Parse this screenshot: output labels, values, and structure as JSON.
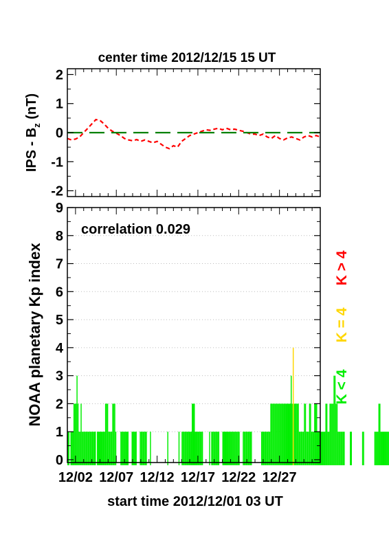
{
  "chart_data": [
    {
      "type": "line",
      "title": "center time 2012/12/15 15 UT",
      "ylabel_main": "IPS - B",
      "ylabel_sub": "z",
      "ylabel_unit": " (nT)",
      "ylim": [
        -2.2,
        2.2
      ],
      "yticks": [
        "2",
        "1",
        "0",
        "-1",
        "-2"
      ],
      "xlim_days": [
        0,
        31
      ],
      "series": [
        {
          "style": "dashed",
          "color": "#ff0000",
          "x": [
            0,
            0.5,
            1,
            1.5,
            2,
            2.5,
            3,
            3.5,
            4,
            4.5,
            5,
            5.5,
            6,
            6.5,
            7,
            7.5,
            8,
            8.5,
            9,
            9.5,
            10,
            10.5,
            11,
            11.5,
            12,
            12.5,
            13,
            13.5,
            14,
            14.5,
            15,
            15.5,
            16,
            16.5,
            17,
            17.5,
            18,
            18.5,
            19,
            19.5,
            20,
            20.5,
            21,
            21.5,
            22,
            22.5,
            23,
            23.5,
            24,
            24.5,
            25,
            25.5,
            26,
            26.5,
            27,
            27.5,
            28,
            28.5,
            29,
            29.5,
            30,
            30.5,
            31
          ],
          "y": [
            -0.2,
            -0.25,
            -0.22,
            -0.15,
            0.0,
            0.15,
            0.3,
            0.45,
            0.42,
            0.3,
            0.15,
            0.05,
            -0.02,
            -0.1,
            -0.2,
            -0.25,
            -0.28,
            -0.24,
            -0.3,
            -0.25,
            -0.3,
            -0.35,
            -0.3,
            -0.4,
            -0.5,
            -0.55,
            -0.45,
            -0.5,
            -0.3,
            -0.2,
            -0.1,
            -0.05,
            0.0,
            0.05,
            0.1,
            0.08,
            0.12,
            0.15,
            0.1,
            0.15,
            0.1,
            0.12,
            0.08,
            0.05,
            0.0,
            -0.05,
            -0.05,
            -0.1,
            -0.05,
            -0.15,
            -0.2,
            -0.1,
            -0.2,
            -0.25,
            -0.18,
            -0.15,
            -0.2,
            -0.25,
            -0.15,
            -0.1,
            -0.15,
            -0.1,
            -0.15
          ]
        },
        {
          "style": "long-dash",
          "color": "#008000",
          "x": [
            0,
            31
          ],
          "y": [
            0,
            0
          ]
        }
      ]
    },
    {
      "type": "bar",
      "ylabel": "NOAA planetary Kp index",
      "xlabel": "start time 2012/12/01 03 UT",
      "annotation": "correlation 0.029",
      "ylim": [
        -0.1,
        9
      ],
      "yticks": [
        "0",
        "1",
        "2",
        "3",
        "4",
        "5",
        "6",
        "7",
        "8",
        "9"
      ],
      "xlim_days": [
        0,
        31
      ],
      "xticks": [
        {
          "day": 1,
          "label": "12/02"
        },
        {
          "day": 6,
          "label": "12/07"
        },
        {
          "day": 11,
          "label": "12/12"
        },
        {
          "day": 16,
          "label": "12/17"
        },
        {
          "day": 21,
          "label": "12/22"
        },
        {
          "day": 26,
          "label": "12/27"
        }
      ],
      "bin_days": 0.125,
      "kp": [
        1,
        1,
        0,
        1,
        1,
        1,
        2,
        2,
        2,
        3,
        2,
        1,
        1,
        2,
        1,
        1,
        1,
        1,
        1,
        1,
        1,
        1,
        1,
        1,
        1,
        1,
        1,
        1,
        0,
        1,
        1,
        1,
        1,
        1,
        1,
        1,
        1,
        2,
        2,
        2,
        1,
        1,
        1,
        1,
        2,
        2,
        2,
        1,
        0,
        0,
        0,
        0,
        1,
        1,
        1,
        1,
        1,
        1,
        1,
        1,
        0,
        0,
        0,
        1,
        1,
        1,
        1,
        1,
        0,
        0,
        0,
        1,
        1,
        1,
        1,
        1,
        1,
        1,
        0,
        0,
        0,
        1,
        0,
        0,
        0,
        0,
        0,
        0,
        0,
        0,
        0,
        0,
        0,
        0,
        0,
        0,
        0,
        0,
        1,
        0,
        0,
        0,
        0,
        0,
        0,
        0,
        0,
        0,
        0,
        1,
        0,
        0,
        1,
        1,
        1,
        1,
        1,
        1,
        1,
        1,
        1,
        1,
        2,
        2,
        2,
        1,
        1,
        1,
        1,
        1,
        1,
        1,
        1,
        0,
        0,
        0,
        0,
        0,
        0,
        1,
        0,
        1,
        1,
        1,
        1,
        1,
        1,
        1,
        1,
        0,
        0,
        0,
        1,
        1,
        1,
        1,
        1,
        1,
        1,
        1,
        1,
        1,
        1,
        1,
        1,
        1,
        1,
        1,
        1,
        0,
        0,
        0,
        1,
        1,
        1,
        1,
        1,
        1,
        1,
        1,
        1,
        0,
        0,
        0,
        0,
        0,
        0,
        0,
        0,
        0,
        1,
        1,
        1,
        1,
        1,
        1,
        1,
        1,
        1,
        2,
        2,
        2,
        2,
        2,
        2,
        2,
        2,
        2,
        2,
        2,
        2,
        2,
        2,
        2,
        2,
        2,
        2,
        2,
        2,
        3,
        2,
        4,
        2,
        2,
        2,
        2,
        2,
        1,
        1,
        1,
        1,
        1,
        2,
        2,
        1,
        1,
        1,
        2,
        2,
        1,
        1,
        1,
        2,
        2,
        2,
        1,
        1,
        1,
        1,
        1,
        1,
        1,
        1,
        2,
        2,
        1,
        1,
        2,
        2,
        2,
        2,
        3,
        3,
        2,
        2,
        1,
        1,
        1,
        1,
        1,
        1,
        1,
        0,
        0,
        0,
        0,
        0,
        1,
        1,
        0,
        0,
        0,
        0,
        0,
        0,
        0,
        0,
        0,
        0,
        1,
        1,
        0,
        0,
        0,
        0,
        0,
        0,
        0,
        0,
        0,
        0,
        1,
        1,
        1,
        1,
        2,
        2,
        1,
        1,
        1,
        1,
        1,
        1,
        1,
        1,
        1,
        1,
        0,
        0,
        1,
        2,
        2,
        1,
        1,
        1,
        1,
        0,
        0,
        0,
        0,
        0,
        0,
        0,
        0,
        0,
        0,
        0,
        0,
        0,
        0,
        0,
        0,
        0,
        0,
        0,
        0,
        0,
        0,
        0,
        0,
        0,
        0,
        1,
        1,
        1,
        1,
        1,
        1,
        1,
        1,
        1,
        1,
        0,
        0
      ],
      "legend": [
        {
          "label": "K > 4",
          "color": "#ff0000"
        },
        {
          "label": "K = 4",
          "color": "#ffd700"
        },
        {
          "label": "K < 4",
          "color": "#00ee00"
        }
      ],
      "grid": "dotted",
      "colors": {
        "low": "#00ee00",
        "four": "#ffd700",
        "high": "#ff0000"
      }
    }
  ]
}
